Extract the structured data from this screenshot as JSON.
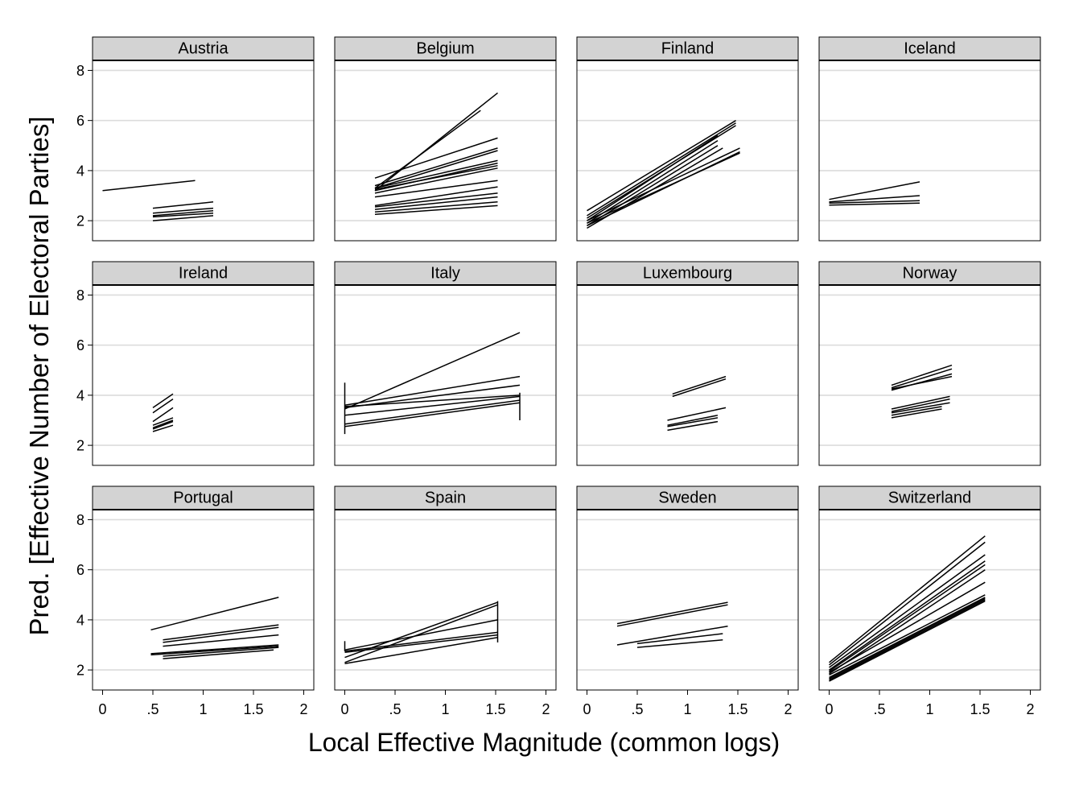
{
  "chart_data": {
    "type": "line",
    "layout": "small-multiples",
    "ylabel": "Pred. [Effective Number of Electoral Parties]",
    "xlabel": "Local Effective Magnitude (common logs)",
    "xlim": [
      -0.1,
      2.1
    ],
    "ylim": [
      1.2,
      8.4
    ],
    "x_ticks": [
      0,
      0.5,
      1,
      1.5,
      2
    ],
    "x_tick_labels": [
      "0",
      ".5",
      "1",
      "1.5",
      "2"
    ],
    "y_ticks": [
      2,
      4,
      6,
      8
    ],
    "y_tick_labels": [
      "2",
      "4",
      "6",
      "8"
    ],
    "grid": "horizontal",
    "panels": [
      {
        "name": "Austria",
        "series": [
          {
            "x": [
              0.0,
              0.92
            ],
            "y": [
              3.2,
              3.6
            ]
          },
          {
            "x": [
              0.5,
              1.1
            ],
            "y": [
              2.5,
              2.75
            ]
          },
          {
            "x": [
              0.5,
              1.1
            ],
            "y": [
              2.3,
              2.5
            ]
          },
          {
            "x": [
              0.5,
              1.1
            ],
            "y": [
              2.2,
              2.4
            ]
          },
          {
            "x": [
              0.5,
              1.1
            ],
            "y": [
              2.15,
              2.3
            ]
          },
          {
            "x": [
              0.5,
              1.1
            ],
            "y": [
              2.0,
              2.2
            ]
          }
        ]
      },
      {
        "name": "Belgium",
        "series": [
          {
            "x": [
              0.3,
              1.52
            ],
            "y": [
              3.2,
              7.1
            ]
          },
          {
            "x": [
              0.3,
              1.35
            ],
            "y": [
              3.3,
              6.4
            ]
          },
          {
            "x": [
              0.3,
              1.52
            ],
            "y": [
              3.7,
              5.3
            ]
          },
          {
            "x": [
              0.3,
              1.52
            ],
            "y": [
              3.4,
              4.9
            ]
          },
          {
            "x": [
              0.3,
              1.52
            ],
            "y": [
              3.3,
              4.8
            ]
          },
          {
            "x": [
              0.3,
              1.52
            ],
            "y": [
              3.3,
              4.4
            ]
          },
          {
            "x": [
              0.3,
              1.52
            ],
            "y": [
              3.2,
              4.3
            ]
          },
          {
            "x": [
              0.3,
              1.52
            ],
            "y": [
              3.25,
              4.2
            ]
          },
          {
            "x": [
              0.3,
              1.52
            ],
            "y": [
              3.1,
              4.1
            ]
          },
          {
            "x": [
              0.3,
              1.52
            ],
            "y": [
              2.95,
              3.6
            ]
          },
          {
            "x": [
              0.3,
              1.52
            ],
            "y": [
              2.6,
              3.35
            ]
          },
          {
            "x": [
              0.3,
              1.52
            ],
            "y": [
              2.55,
              3.1
            ]
          },
          {
            "x": [
              0.3,
              1.52
            ],
            "y": [
              2.45,
              2.95
            ]
          },
          {
            "x": [
              0.3,
              1.52
            ],
            "y": [
              2.35,
              2.75
            ]
          },
          {
            "x": [
              0.3,
              1.52
            ],
            "y": [
              2.25,
              2.6
            ]
          }
        ]
      },
      {
        "name": "Finland",
        "series": [
          {
            "x": [
              0.0,
              1.48
            ],
            "y": [
              2.4,
              6.0
            ]
          },
          {
            "x": [
              0.0,
              1.48
            ],
            "y": [
              2.2,
              5.9
            ]
          },
          {
            "x": [
              0.0,
              1.48
            ],
            "y": [
              2.1,
              5.8
            ]
          },
          {
            "x": [
              0.0,
              1.3
            ],
            "y": [
              2.0,
              5.4
            ]
          },
          {
            "x": [
              0.0,
              1.3
            ],
            "y": [
              1.9,
              5.2
            ]
          },
          {
            "x": [
              0.0,
              1.3
            ],
            "y": [
              1.8,
              5.0
            ]
          },
          {
            "x": [
              0.0,
              1.35
            ],
            "y": [
              1.7,
              4.9
            ]
          },
          {
            "x": [
              0.0,
              1.52
            ],
            "y": [
              2.0,
              4.9
            ]
          },
          {
            "x": [
              0.0,
              1.52
            ],
            "y": [
              1.9,
              4.7
            ]
          },
          {
            "x": [
              0.0,
              1.52
            ],
            "y": [
              1.8,
              4.75
            ]
          }
        ]
      },
      {
        "name": "Iceland",
        "series": [
          {
            "x": [
              0.0,
              0.9
            ],
            "y": [
              2.85,
              3.55
            ]
          },
          {
            "x": [
              0.0,
              0.9
            ],
            "y": [
              2.75,
              3.0
            ]
          },
          {
            "x": [
              0.0,
              0.9
            ],
            "y": [
              2.7,
              2.8
            ]
          },
          {
            "x": [
              0.0,
              0.9
            ],
            "y": [
              2.62,
              2.7
            ]
          }
        ]
      },
      {
        "name": "Ireland",
        "series": [
          {
            "x": [
              0.5,
              0.7
            ],
            "y": [
              3.5,
              4.05
            ]
          },
          {
            "x": [
              0.5,
              0.7
            ],
            "y": [
              3.3,
              3.85
            ]
          },
          {
            "x": [
              0.5,
              0.7
            ],
            "y": [
              2.95,
              3.5
            ]
          },
          {
            "x": [
              0.5,
              0.7
            ],
            "y": [
              2.8,
              3.1
            ]
          },
          {
            "x": [
              0.5,
              0.7
            ],
            "y": [
              2.7,
              3.0
            ]
          },
          {
            "x": [
              0.5,
              0.7
            ],
            "y": [
              2.65,
              2.95
            ]
          },
          {
            "x": [
              0.5,
              0.7
            ],
            "y": [
              2.55,
              2.8
            ]
          }
        ]
      },
      {
        "name": "Italy",
        "series": [
          {
            "x": [
              0.0,
              1.74
            ],
            "y": [
              3.45,
              6.5
            ]
          },
          {
            "x": [
              0.0,
              1.74
            ],
            "y": [
              3.6,
              4.75
            ]
          },
          {
            "x": [
              0.0,
              1.74
            ],
            "y": [
              3.5,
              4.4
            ]
          },
          {
            "x": [
              0.0,
              1.74
            ],
            "y": [
              3.55,
              4.0
            ]
          },
          {
            "x": [
              0.0,
              1.74
            ],
            "y": [
              3.2,
              3.95
            ]
          },
          {
            "x": [
              0.0,
              1.74
            ],
            "y": [
              2.85,
              3.8
            ]
          },
          {
            "x": [
              0.0,
              1.74
            ],
            "y": [
              2.75,
              3.7
            ]
          },
          {
            "x": [
              0.0,
              0.0
            ],
            "y": [
              2.45,
              4.5
            ]
          },
          {
            "x": [
              1.74,
              1.74
            ],
            "y": [
              3.0,
              4.1
            ]
          }
        ]
      },
      {
        "name": "Luxembourg",
        "series": [
          {
            "x": [
              0.85,
              1.38
            ],
            "y": [
              4.05,
              4.75
            ]
          },
          {
            "x": [
              0.85,
              1.38
            ],
            "y": [
              3.95,
              4.65
            ]
          },
          {
            "x": [
              0.8,
              1.38
            ],
            "y": [
              3.0,
              3.5
            ]
          },
          {
            "x": [
              0.8,
              1.3
            ],
            "y": [
              2.8,
              3.2
            ]
          },
          {
            "x": [
              0.8,
              1.3
            ],
            "y": [
              2.75,
              3.1
            ]
          },
          {
            "x": [
              0.8,
              1.3
            ],
            "y": [
              2.6,
              2.95
            ]
          }
        ]
      },
      {
        "name": "Norway",
        "series": [
          {
            "x": [
              0.62,
              1.22
            ],
            "y": [
              4.4,
              5.2
            ]
          },
          {
            "x": [
              0.62,
              1.22
            ],
            "y": [
              4.3,
              5.05
            ]
          },
          {
            "x": [
              0.62,
              1.22
            ],
            "y": [
              4.2,
              4.85
            ]
          },
          {
            "x": [
              0.62,
              1.22
            ],
            "y": [
              4.25,
              4.75
            ]
          },
          {
            "x": [
              0.62,
              1.2
            ],
            "y": [
              3.45,
              3.95
            ]
          },
          {
            "x": [
              0.62,
              1.2
            ],
            "y": [
              3.35,
              3.85
            ]
          },
          {
            "x": [
              0.62,
              1.2
            ],
            "y": [
              3.3,
              3.7
            ]
          },
          {
            "x": [
              0.62,
              1.12
            ],
            "y": [
              3.2,
              3.55
            ]
          },
          {
            "x": [
              0.62,
              1.12
            ],
            "y": [
              3.1,
              3.45
            ]
          }
        ]
      },
      {
        "name": "Portugal",
        "series": [
          {
            "x": [
              0.48,
              1.75
            ],
            "y": [
              3.6,
              4.9
            ]
          },
          {
            "x": [
              0.6,
              1.75
            ],
            "y": [
              3.2,
              3.8
            ]
          },
          {
            "x": [
              0.6,
              1.75
            ],
            "y": [
              3.1,
              3.7
            ]
          },
          {
            "x": [
              0.6,
              1.75
            ],
            "y": [
              2.95,
              3.4
            ]
          },
          {
            "x": [
              0.48,
              1.75
            ],
            "y": [
              2.65,
              3.0
            ]
          },
          {
            "x": [
              0.48,
              1.75
            ],
            "y": [
              2.6,
              2.95
            ]
          },
          {
            "x": [
              0.6,
              1.75
            ],
            "y": [
              2.55,
              2.9
            ]
          },
          {
            "x": [
              0.6,
              1.7
            ],
            "y": [
              2.45,
              2.8
            ]
          }
        ]
      },
      {
        "name": "Spain",
        "series": [
          {
            "x": [
              0.0,
              1.52
            ],
            "y": [
              2.5,
              4.7
            ]
          },
          {
            "x": [
              0.0,
              1.52
            ],
            "y": [
              2.3,
              4.6
            ]
          },
          {
            "x": [
              0.0,
              1.52
            ],
            "y": [
              2.8,
              4.0
            ]
          },
          {
            "x": [
              0.0,
              1.52
            ],
            "y": [
              2.75,
              3.5
            ]
          },
          {
            "x": [
              0.0,
              1.52
            ],
            "y": [
              2.7,
              3.4
            ]
          },
          {
            "x": [
              0.0,
              1.52
            ],
            "y": [
              2.25,
              3.3
            ]
          },
          {
            "x": [
              0.0,
              0.0
            ],
            "y": [
              2.75,
              3.15
            ]
          },
          {
            "x": [
              1.52,
              1.52
            ],
            "y": [
              3.1,
              4.75
            ]
          }
        ]
      },
      {
        "name": "Sweden",
        "series": [
          {
            "x": [
              0.3,
              1.4
            ],
            "y": [
              3.85,
              4.7
            ]
          },
          {
            "x": [
              0.3,
              1.4
            ],
            "y": [
              3.75,
              4.6
            ]
          },
          {
            "x": [
              0.3,
              1.4
            ],
            "y": [
              3.0,
              3.75
            ]
          },
          {
            "x": [
              0.5,
              1.35
            ],
            "y": [
              3.05,
              3.45
            ]
          },
          {
            "x": [
              0.5,
              1.35
            ],
            "y": [
              2.9,
              3.2
            ]
          }
        ]
      },
      {
        "name": "Switzerland",
        "series": [
          {
            "x": [
              0.0,
              1.55
            ],
            "y": [
              2.3,
              7.35
            ]
          },
          {
            "x": [
              0.0,
              1.55
            ],
            "y": [
              2.2,
              7.1
            ]
          },
          {
            "x": [
              0.0,
              1.55
            ],
            "y": [
              2.1,
              6.6
            ]
          },
          {
            "x": [
              0.0,
              1.55
            ],
            "y": [
              2.0,
              6.35
            ]
          },
          {
            "x": [
              0.0,
              1.55
            ],
            "y": [
              1.95,
              6.2
            ]
          },
          {
            "x": [
              0.0,
              1.55
            ],
            "y": [
              1.85,
              6.0
            ]
          },
          {
            "x": [
              0.0,
              1.55
            ],
            "y": [
              1.9,
              5.5
            ]
          },
          {
            "x": [
              0.0,
              1.55
            ],
            "y": [
              1.8,
              5.0
            ]
          },
          {
            "x": [
              0.0,
              1.55
            ],
            "y": [
              1.7,
              4.9
            ]
          },
          {
            "x": [
              0.0,
              1.55
            ],
            "y": [
              1.65,
              4.85
            ]
          },
          {
            "x": [
              0.0,
              1.55
            ],
            "y": [
              1.6,
              4.8
            ]
          },
          {
            "x": [
              0.0,
              1.55
            ],
            "y": [
              1.55,
              4.75
            ]
          }
        ]
      }
    ]
  }
}
